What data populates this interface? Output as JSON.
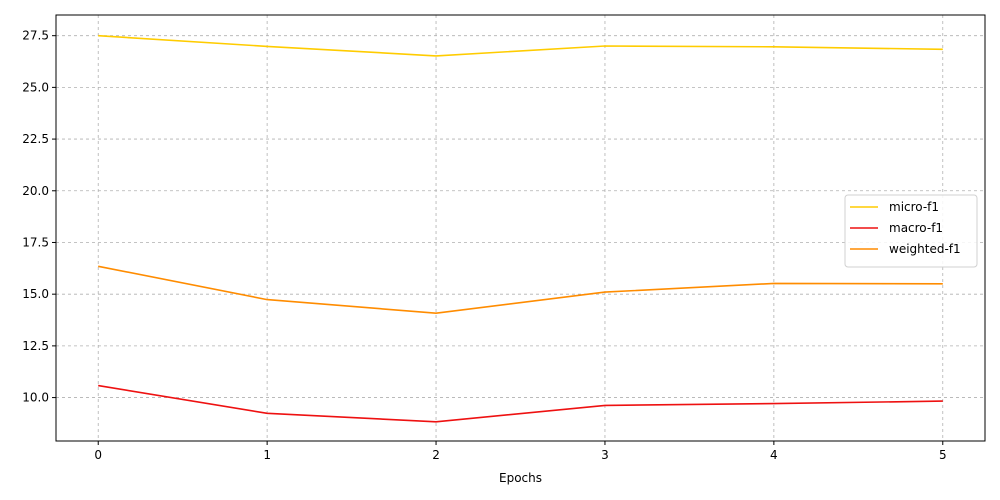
{
  "chart_data": {
    "type": "line",
    "title": "",
    "xlabel": "Epochs",
    "ylabel": "",
    "x": [
      0,
      1,
      2,
      3,
      4,
      5
    ],
    "xticks": [
      "0",
      "1",
      "2",
      "3",
      "4",
      "5"
    ],
    "yticks": [
      "10.0",
      "12.5",
      "15.0",
      "17.5",
      "20.0",
      "22.5",
      "25.0",
      "27.5"
    ],
    "xlim": [
      -0.25,
      5.25
    ],
    "ylim": [
      7.9,
      28.5
    ],
    "grid": true,
    "legend_position": "center-right",
    "series": [
      {
        "name": "micro-f1",
        "color": "#ffcc00",
        "values": [
          27.5,
          26.98,
          26.52,
          27.0,
          26.96,
          26.84
        ]
      },
      {
        "name": "macro-f1",
        "color": "#ee1111",
        "values": [
          10.58,
          9.24,
          8.83,
          9.62,
          9.71,
          9.83
        ]
      },
      {
        "name": "weighted-f1",
        "color": "#ff8c00",
        "values": [
          16.35,
          14.74,
          14.08,
          15.1,
          15.52,
          15.5
        ]
      }
    ]
  }
}
